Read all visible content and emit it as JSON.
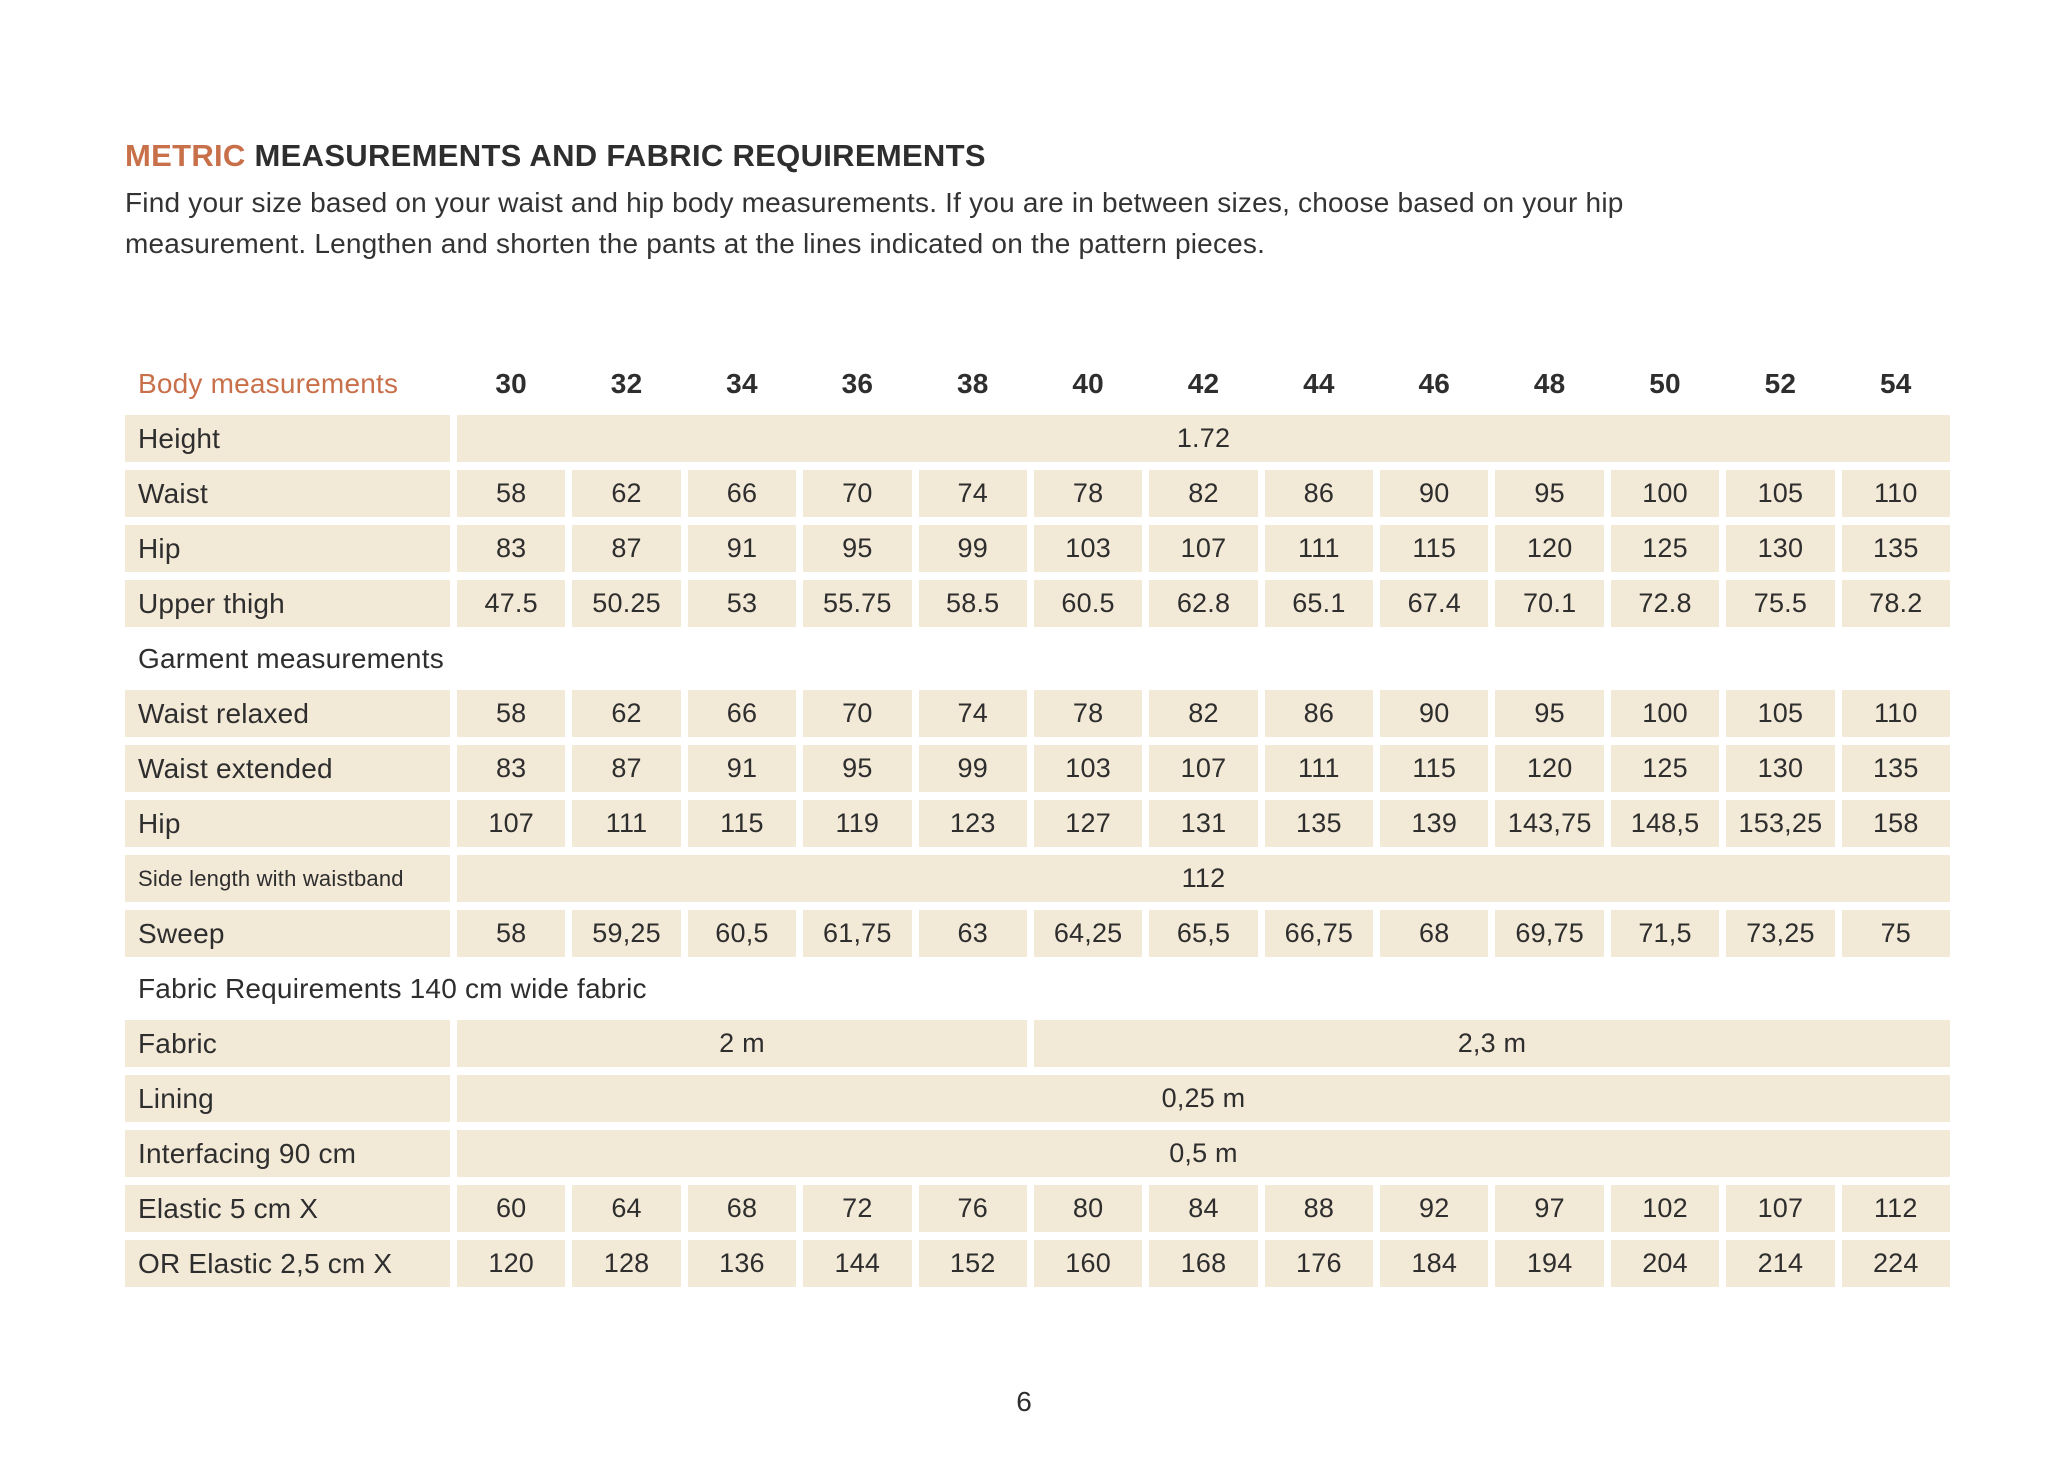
{
  "page": {
    "title_accent": "METRIC",
    "title_rest": " MEASUREMENTS AND FABRIC REQUIREMENTS",
    "intro": "Find your size based on your waist and hip body measurements. If you are in between sizes, choose based on your hip\nmeasurement. Lengthen and shorten the pants at the lines indicated on the pattern pieces.",
    "page_number": "6"
  },
  "colors": {
    "accent": "#c8704a",
    "cell_background": "#f3e9d7",
    "text": "#2e2e2e"
  },
  "table": {
    "header_label": "Body measurements",
    "sizes": [
      "30",
      "32",
      "34",
      "36",
      "38",
      "40",
      "42",
      "44",
      "46",
      "48",
      "50",
      "52",
      "54"
    ],
    "rows": [
      {
        "type": "merged",
        "label": "Height",
        "value": "1.72"
      },
      {
        "type": "data",
        "label": "Waist",
        "values": [
          "58",
          "62",
          "66",
          "70",
          "74",
          "78",
          "82",
          "86",
          "90",
          "95",
          "100",
          "105",
          "110"
        ]
      },
      {
        "type": "data",
        "label": "Hip",
        "values": [
          "83",
          "87",
          "91",
          "95",
          "99",
          "103",
          "107",
          "111",
          "115",
          "120",
          "125",
          "130",
          "135"
        ]
      },
      {
        "type": "data",
        "label": "Upper thigh",
        "values": [
          "47.5",
          "50.25",
          "53",
          "55.75",
          "58.5",
          "60.5",
          "62.8",
          "65.1",
          "67.4",
          "70.1",
          "72.8",
          "75.5",
          "78.2"
        ]
      },
      {
        "type": "section",
        "label": "Garment measurements"
      },
      {
        "type": "data",
        "label": "Waist relaxed",
        "values": [
          "58",
          "62",
          "66",
          "70",
          "74",
          "78",
          "82",
          "86",
          "90",
          "95",
          "100",
          "105",
          "110"
        ]
      },
      {
        "type": "data",
        "label": "Waist extended",
        "values": [
          "83",
          "87",
          "91",
          "95",
          "99",
          "103",
          "107",
          "111",
          "115",
          "120",
          "125",
          "130",
          "135"
        ]
      },
      {
        "type": "data",
        "label": "Hip",
        "values": [
          "107",
          "111",
          "115",
          "119",
          "123",
          "127",
          "131",
          "135",
          "139",
          "143,75",
          "148,5",
          "153,25",
          "158"
        ]
      },
      {
        "type": "merged",
        "label": "Side length with waistband",
        "value": "112",
        "small_label": true
      },
      {
        "type": "data",
        "label": "Sweep",
        "values": [
          "58",
          "59,25",
          "60,5",
          "61,75",
          "63",
          "64,25",
          "65,5",
          "66,75",
          "68",
          "69,75",
          "71,5",
          "73,25",
          "75"
        ]
      },
      {
        "type": "section",
        "label": "Fabric Requirements 140 cm wide fabric"
      },
      {
        "type": "span",
        "label": "Fabric",
        "spans": [
          {
            "value": "2 m",
            "cols": 5
          },
          {
            "value": "2,3 m",
            "cols": 8
          }
        ]
      },
      {
        "type": "merged",
        "label": "Lining",
        "value": "0,25 m"
      },
      {
        "type": "merged",
        "label": "Interfacing 90 cm",
        "value": "0,5 m"
      },
      {
        "type": "data",
        "label": "Elastic 5 cm X",
        "values": [
          "60",
          "64",
          "68",
          "72",
          "76",
          "80",
          "84",
          "88",
          "92",
          "97",
          "102",
          "107",
          "112"
        ]
      },
      {
        "type": "data",
        "label": "OR Elastic 2,5 cm X",
        "values": [
          "120",
          "128",
          "136",
          "144",
          "152",
          "160",
          "168",
          "176",
          "184",
          "194",
          "204",
          "214",
          "224"
        ]
      }
    ]
  }
}
